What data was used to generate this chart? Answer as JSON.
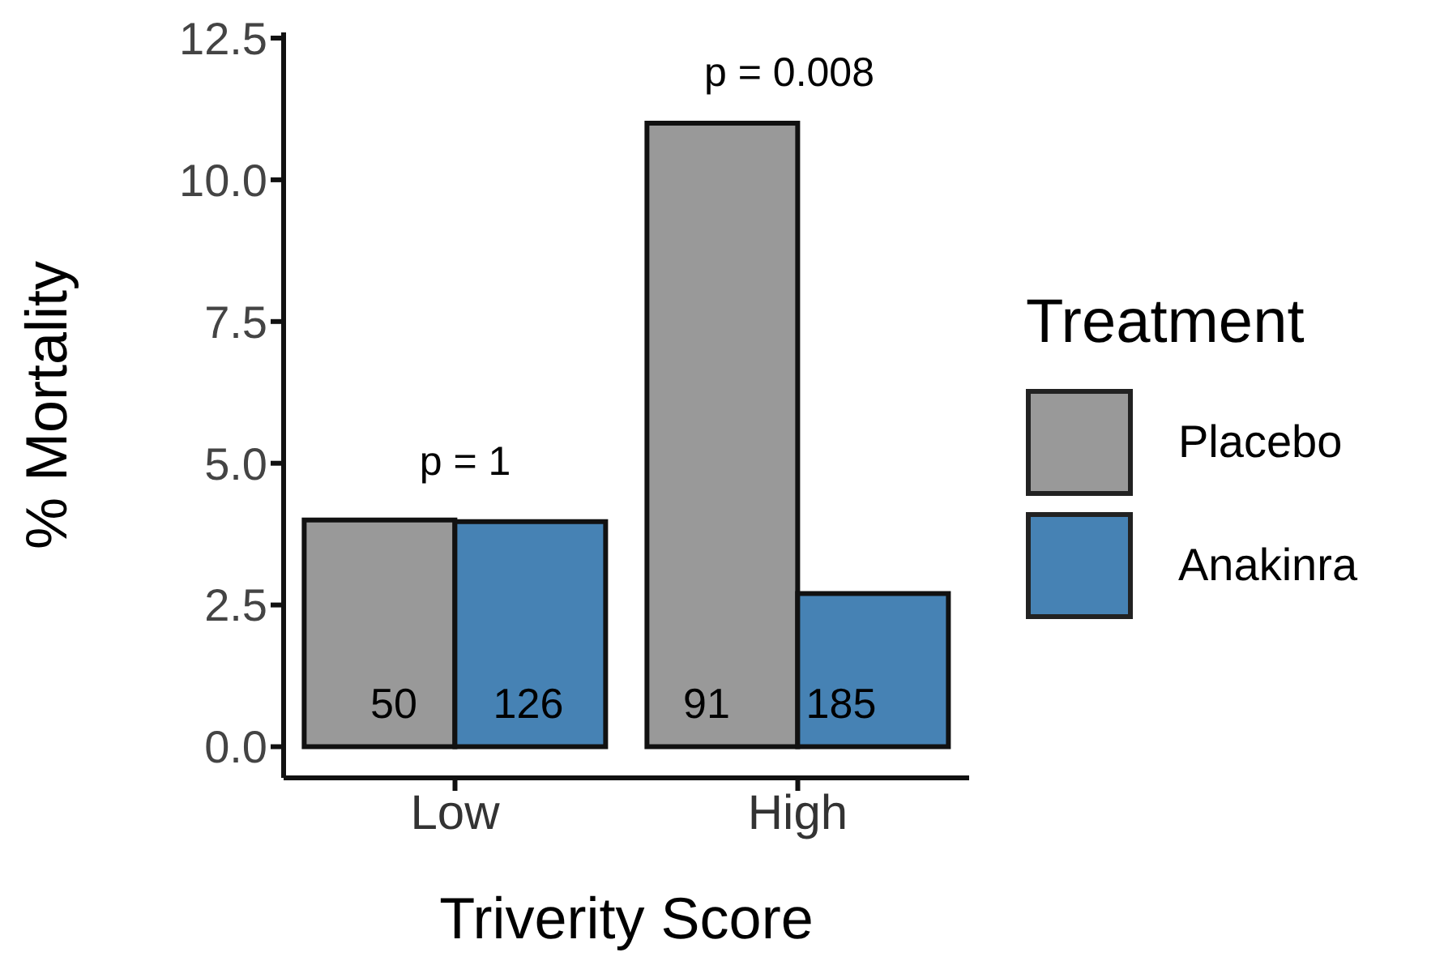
{
  "chart_data": {
    "type": "bar",
    "xlabel": "Triverity Score",
    "ylabel": "% Mortality",
    "legend_title": "Treatment",
    "legend": "right",
    "grid": false,
    "categories": [
      "Low",
      "High"
    ],
    "series": [
      {
        "name": "Placebo",
        "color": "#999999",
        "values": [
          4.0,
          11.0
        ]
      },
      {
        "name": "Anakinra",
        "color": "#4682b4",
        "values": [
          3.97,
          2.7
        ]
      }
    ],
    "ylim": [
      -0.55,
      12.6
    ],
    "yticks": [
      {
        "value": 0,
        "label": "0.0"
      },
      2.5,
      {
        "value": 5,
        "label": "5.0"
      },
      7.5,
      {
        "value": 10,
        "label": "10.0"
      },
      12.5
    ],
    "annotations": [
      "p = 1",
      "p = 0.008",
      "50",
      "126",
      "91",
      "185"
    ]
  }
}
